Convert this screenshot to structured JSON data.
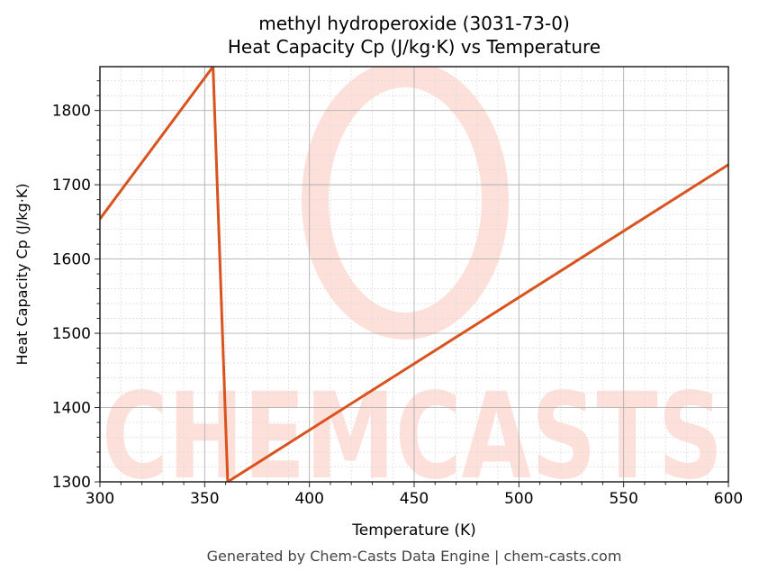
{
  "title_line1": "methyl hydroperoxide (3031-73-0)",
  "title_line2": "Heat Capacity Cp (J/kg·K) vs Temperature",
  "footer": "Generated by Chem-Casts Data Engine | chem-casts.com",
  "watermark": "CHEMCASTS",
  "colors": {
    "line": "#d9531e",
    "watermark": "#fde0da",
    "grid_major": "#b0b0b0",
    "grid_minor": "#dddddd"
  },
  "chart_data": {
    "type": "line",
    "title": "methyl hydroperoxide (3031-73-0)\nHeat Capacity Cp (J/kg·K) vs Temperature",
    "xlabel": "Temperature (K)",
    "ylabel": "Heat Capacity Cp (J/kg·K)",
    "xlim": [
      300,
      600
    ],
    "ylim": [
      1300,
      1859
    ],
    "xticks": [
      300,
      350,
      400,
      450,
      500,
      550,
      600
    ],
    "yticks": [
      1300,
      1400,
      1500,
      1600,
      1700,
      1800
    ],
    "grid": true,
    "minor_grid": true,
    "legend": null,
    "series": [
      {
        "name": "Cp",
        "x": [
          300,
          354,
          361,
          600
        ],
        "y": [
          1654,
          1859,
          1300,
          1727
        ]
      }
    ]
  }
}
